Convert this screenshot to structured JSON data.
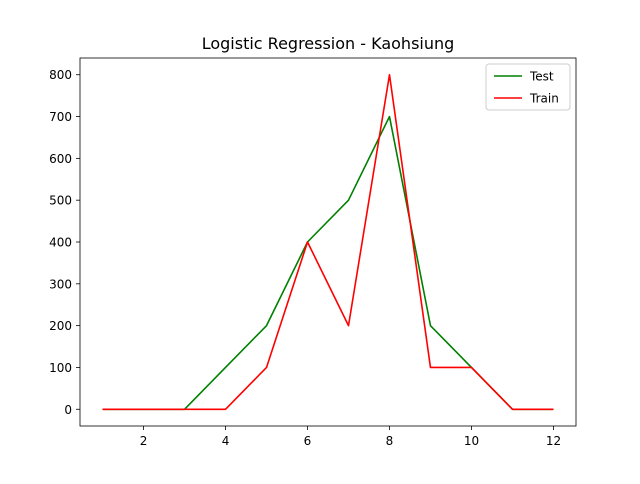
{
  "chart_data": {
    "type": "line",
    "title": "Logistic Regression - Kaohsiung",
    "xlabel": "",
    "ylabel": "",
    "x": [
      1,
      2,
      3,
      4,
      5,
      6,
      7,
      8,
      9,
      10,
      11,
      12
    ],
    "xlim": [
      0.45,
      12.55
    ],
    "ylim": [
      -40,
      840
    ],
    "xticks": [
      2,
      4,
      6,
      8,
      10,
      12
    ],
    "yticks": [
      0,
      100,
      200,
      300,
      400,
      500,
      600,
      700,
      800
    ],
    "grid": false,
    "legend_position": "top-right",
    "series": [
      {
        "name": "Test",
        "color": "#008000",
        "values": [
          0,
          0,
          0,
          100,
          200,
          400,
          500,
          700,
          200,
          100,
          0,
          0
        ]
      },
      {
        "name": "Train",
        "color": "#ff0000",
        "values": [
          0,
          0,
          0,
          0,
          100,
          400,
          200,
          800,
          100,
          100,
          0,
          0
        ]
      }
    ]
  }
}
